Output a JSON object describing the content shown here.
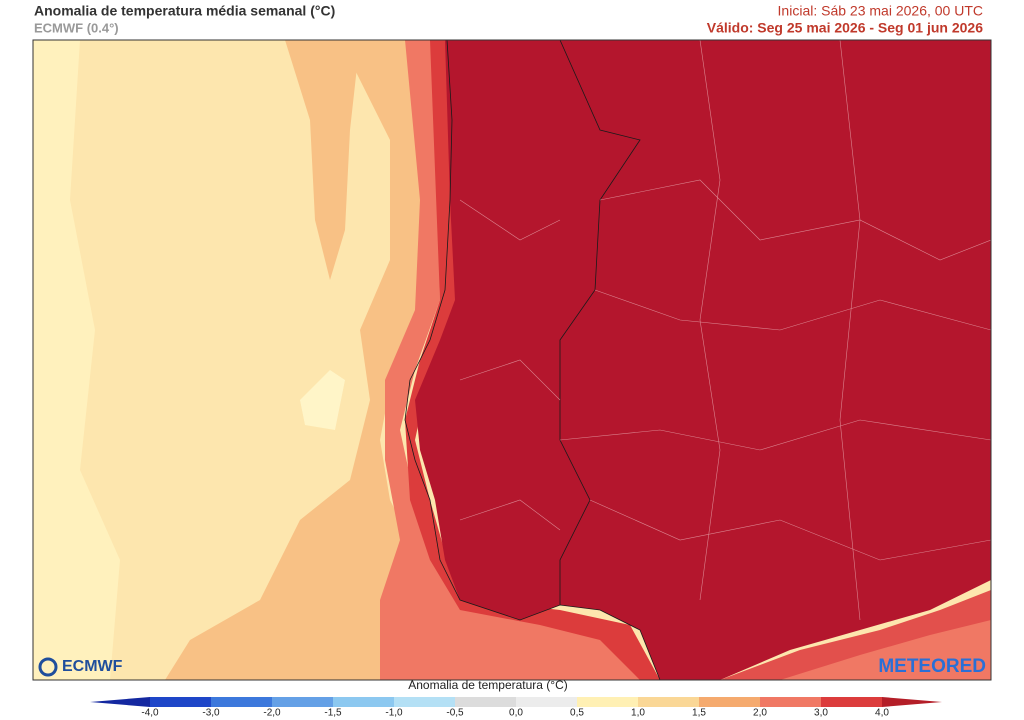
{
  "header": {
    "title": "Anomalia de temperatura média semanal (°C)",
    "model": "ECMWF (0.4°)",
    "initial": "Inicial: Sáb 23 mai 2026, 00 UTC",
    "valid": "Válido: Seg 25 mai 2026 - Seg 01 jun 2026"
  },
  "logos": {
    "left": "ECMWF",
    "right": "METEORED"
  },
  "colorbar": {
    "title": "Anomalia de temperatura (°C)",
    "ticks": [
      "-4,0",
      "-3,0",
      "-2,0",
      "-1,5",
      "-1,0",
      "-0,5",
      "0,0",
      "0,5",
      "1,0",
      "1,5",
      "2,0",
      "3,0",
      "4,0"
    ],
    "colors": [
      "#1428a0",
      "#1e46c8",
      "#3c78dc",
      "#64a0e6",
      "#8cc8f0",
      "#b4e0f5",
      "#dcdcdc",
      "#ececec",
      "#fff0b4",
      "#fad796",
      "#f5aa6e",
      "#f07864",
      "#dc3c3c",
      "#b41e28"
    ]
  }
}
